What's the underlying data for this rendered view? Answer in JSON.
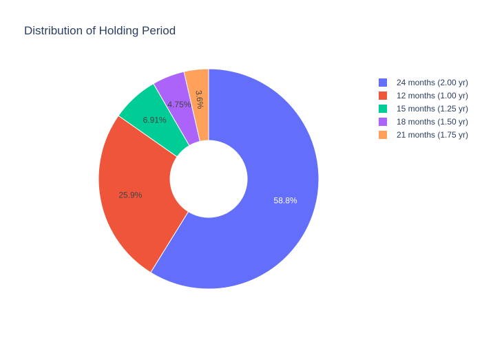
{
  "chart_data": {
    "type": "pie",
    "hole": true,
    "title": "Distribution of Holding Period",
    "legend_position": "right",
    "slices": [
      {
        "label": "24 months (2.00 yr)",
        "value": 58.8,
        "value_label": "58.8%",
        "color": "#636efa",
        "label_color": "#ffffff"
      },
      {
        "label": "12 months (1.00 yr)",
        "value": 25.9,
        "value_label": "25.9%",
        "color": "#ef553b",
        "label_color": "#444444"
      },
      {
        "label": "15 months (1.25 yr)",
        "value": 6.91,
        "value_label": "6.91%",
        "color": "#00cc96",
        "label_color": "#444444"
      },
      {
        "label": "18 months (1.50 yr)",
        "value": 4.75,
        "value_label": "4.75%",
        "color": "#ab63fa",
        "label_color": "#444444"
      },
      {
        "label": "21 months (1.75 yr)",
        "value": 3.6,
        "value_label": "3.6%",
        "color": "#ffa15a",
        "label_color": "#444444"
      }
    ]
  }
}
